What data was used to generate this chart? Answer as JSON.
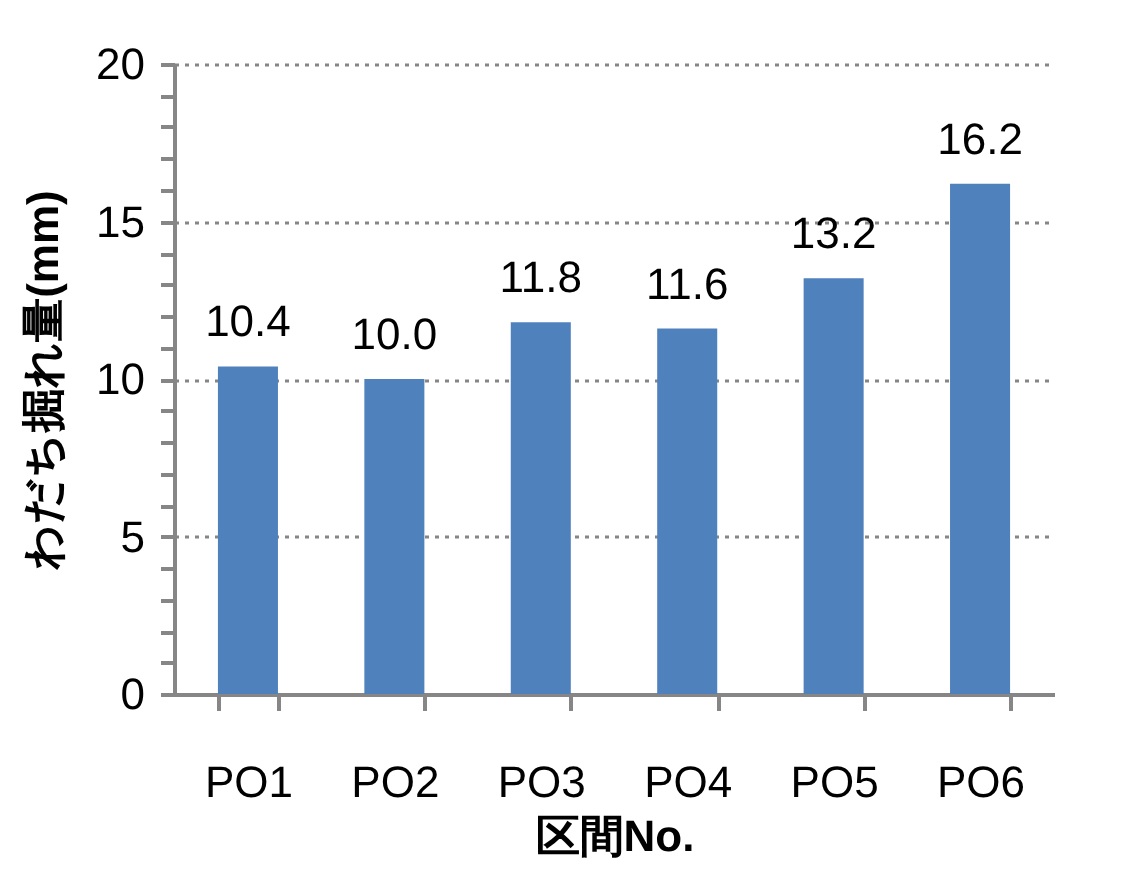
{
  "chart_data": {
    "type": "bar",
    "xlabel": "区間No.",
    "ylabel": "わだち掘れ量(mm)",
    "categories": [
      "PO1",
      "PO2",
      "PO3",
      "PO4",
      "PO5",
      "PO6"
    ],
    "values": [
      10.4,
      10.0,
      11.8,
      11.6,
      13.2,
      16.2
    ],
    "value_labels": [
      "10.4",
      "10.0",
      "11.8",
      "11.6",
      "13.2",
      "16.2"
    ],
    "color": "#4f81bd",
    "ylim": [
      0,
      20
    ],
    "yticks": [
      0,
      {
        "value": 1,
        "label": null
      },
      {
        "value": 2,
        "label": null
      },
      {
        "value": 3,
        "label": null
      },
      {
        "value": 4,
        "label": null
      },
      5,
      {
        "value": 6,
        "label": null
      },
      {
        "value": 7,
        "label": null
      },
      {
        "value": 8,
        "label": null
      },
      {
        "value": 9,
        "label": null
      },
      10,
      {
        "value": 11,
        "label": null
      },
      {
        "value": 12,
        "label": null
      },
      {
        "value": 13,
        "label": null
      },
      {
        "value": 14,
        "label": null
      },
      15,
      {
        "value": 16,
        "label": null
      },
      {
        "value": 17,
        "label": null
      },
      {
        "value": 18,
        "label": null
      },
      {
        "value": 19,
        "label": null
      },
      20
    ],
    "grid": "y"
  }
}
